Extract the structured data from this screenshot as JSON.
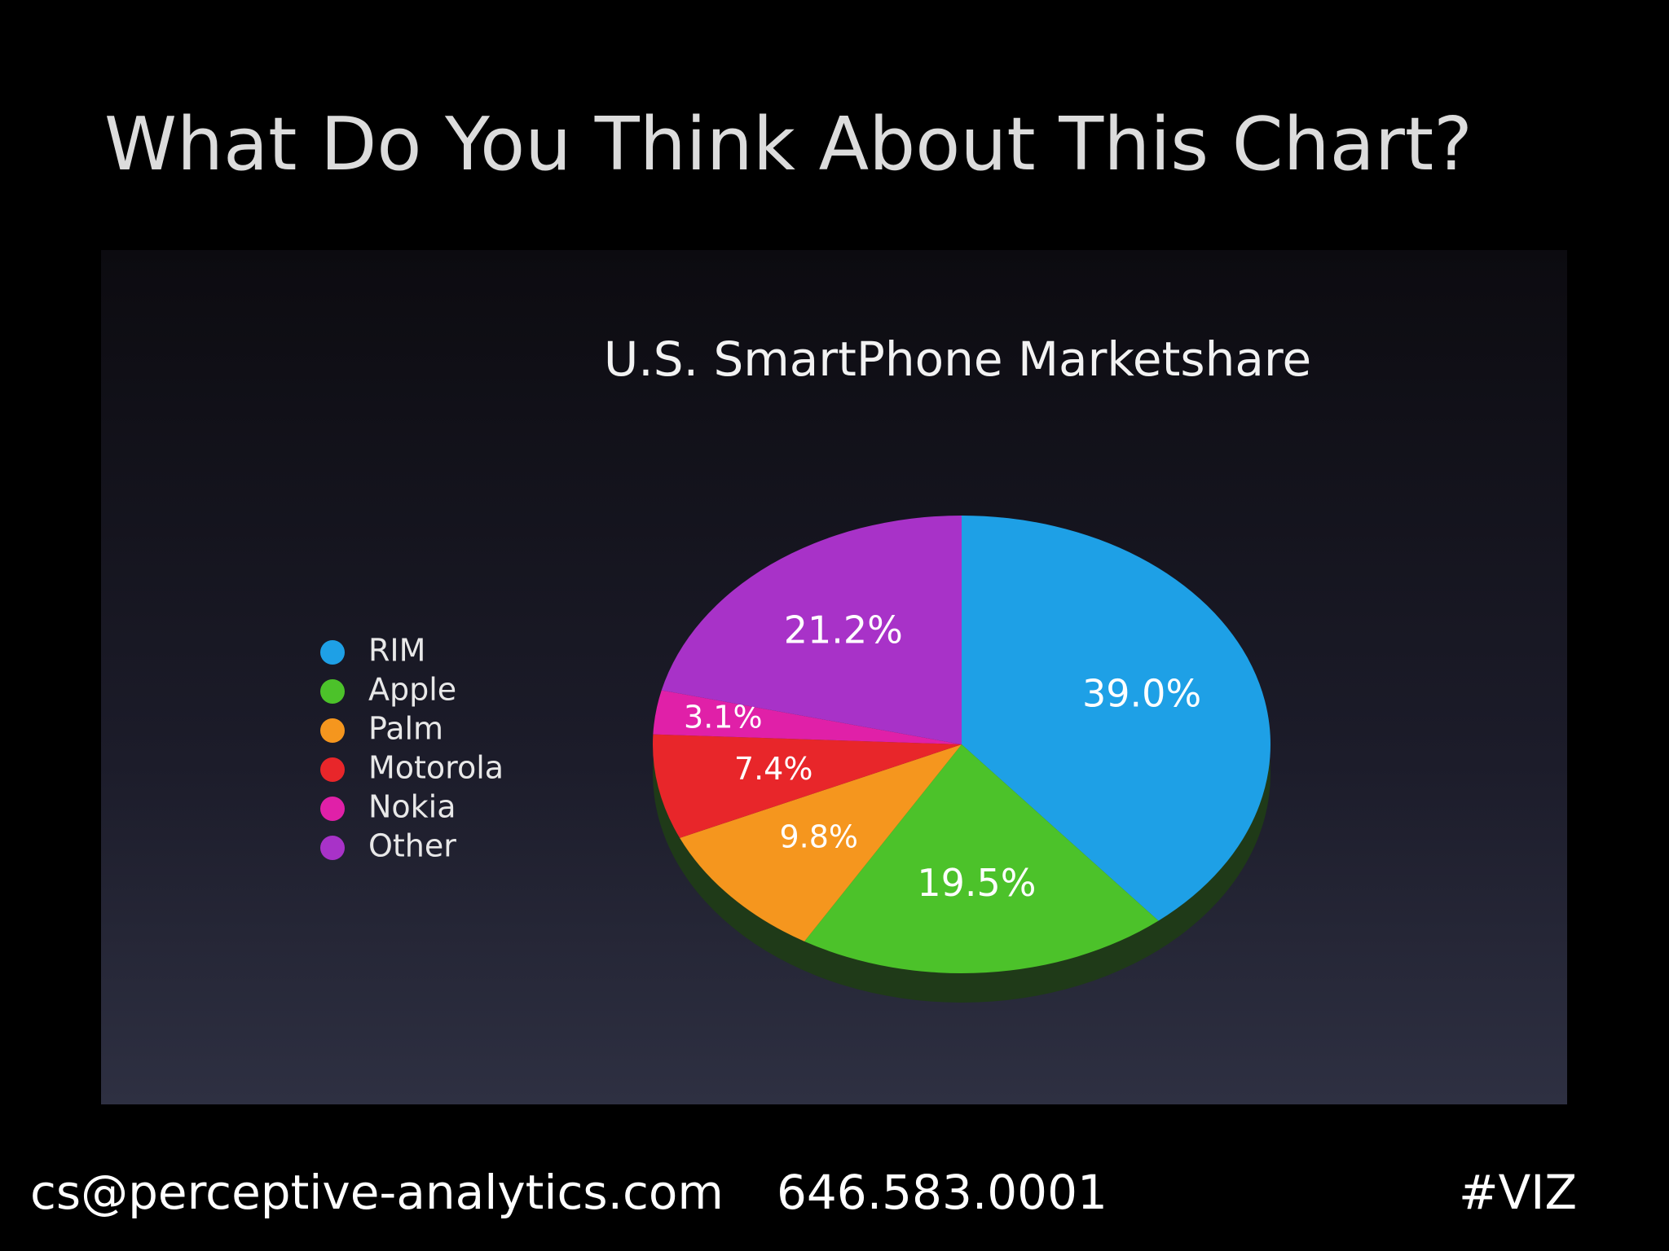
{
  "slide": {
    "title": "What Do You Think About This Chart?"
  },
  "chart_data": {
    "type": "pie",
    "title": "U.S. SmartPhone Marketshare",
    "categories": [
      "RIM",
      "Apple",
      "Palm",
      "Motorola",
      "Nokia",
      "Other"
    ],
    "values": [
      39.0,
      19.5,
      9.8,
      7.4,
      3.1,
      21.2
    ],
    "value_labels": [
      "39.0%",
      "19.5%",
      "9.8%",
      "7.4%",
      "3.1%",
      "21.2%"
    ],
    "colors": [
      "#1ea0e6",
      "#4cc22a",
      "#f5961e",
      "#e8262a",
      "#e020a8",
      "#a832c8"
    ]
  },
  "footer": {
    "email": "cs@perceptive-analytics.com",
    "phone": "646.583.0001",
    "tag": "#VIZ"
  }
}
